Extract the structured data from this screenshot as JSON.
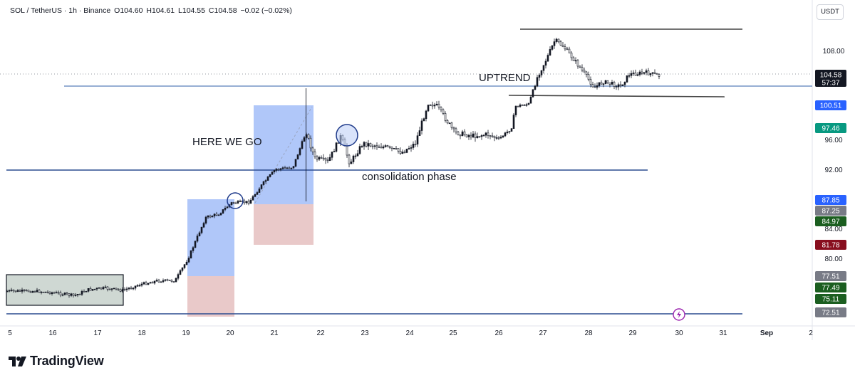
{
  "header": {
    "symbol": "SOL / TetherUS · 1h · Binance",
    "open": "O104.60",
    "high": "H104.61",
    "low": "L104.55",
    "close": "C104.58",
    "change": "−0.02 (−0.02%)"
  },
  "currency_button": "USDT",
  "brand": "TradingView",
  "chart_data": {
    "type": "candlestick",
    "x_ticks": [
      "5",
      "16",
      "17",
      "18",
      "19",
      "20",
      "21",
      "22",
      "23",
      "24",
      "25",
      "26",
      "27",
      "28",
      "29",
      "30",
      "31",
      "Sep",
      "2"
    ],
    "y_ticks": [
      "108.00",
      "96.00",
      "92.00",
      "84.00",
      "80.00"
    ],
    "price_tags": [
      {
        "label": "104.58",
        "sub": "57:37",
        "color": "#131722"
      },
      {
        "label": "100.51",
        "color": "#2962ff"
      },
      {
        "label": "97.46",
        "color": "#089981"
      },
      {
        "label": "87.85",
        "color": "#2962ff"
      },
      {
        "label": "87.25",
        "color": "#787b86"
      },
      {
        "label": "84.97",
        "color": "#1b5e20"
      },
      {
        "label": "81.78",
        "color": "#880e1e"
      },
      {
        "label": "77.51",
        "color": "#787b86"
      },
      {
        "label": "77.49",
        "color": "#1b5e20"
      },
      {
        "label": "75.11",
        "color": "#1b5e20"
      },
      {
        "label": "72.51",
        "color": "#787b86"
      }
    ],
    "annotations": [
      "HERE WE GO",
      "consolidation phase",
      "UPTREND"
    ],
    "path": [
      {
        "x": "15.6",
        "y": 75.6
      },
      {
        "x": "16.0",
        "y": 75.4
      },
      {
        "x": "16.5",
        "y": 75.0
      },
      {
        "x": "16.8",
        "y": 75.8
      },
      {
        "x": "17.2",
        "y": 76.0
      },
      {
        "x": "17.6",
        "y": 75.7
      },
      {
        "x": "18.0",
        "y": 76.5
      },
      {
        "x": "18.4",
        "y": 77.0
      },
      {
        "x": "18.8",
        "y": 77.0
      },
      {
        "x": "19.1",
        "y": 80.0
      },
      {
        "x": "19.5",
        "y": 85.5
      },
      {
        "x": "19.8",
        "y": 86.0
      },
      {
        "x": "20.1",
        "y": 87.5
      },
      {
        "x": "20.5",
        "y": 87.6
      },
      {
        "x": "20.8",
        "y": 90.0
      },
      {
        "x": "21.1",
        "y": 92.0
      },
      {
        "x": "21.5",
        "y": 92.3
      },
      {
        "x": "21.8",
        "y": 97.0
      },
      {
        "x": "22.0",
        "y": 93.5
      },
      {
        "x": "22.3",
        "y": 93.0
      },
      {
        "x": "22.6",
        "y": 96.5
      },
      {
        "x": "22.8",
        "y": 92.8
      },
      {
        "x": "23.1",
        "y": 95.5
      },
      {
        "x": "23.6",
        "y": 95.0
      },
      {
        "x": "24.0",
        "y": 94.3
      },
      {
        "x": "24.3",
        "y": 95.5
      },
      {
        "x": "24.6",
        "y": 101.0
      },
      {
        "x": "24.8",
        "y": 100.5
      },
      {
        "x": "25.2",
        "y": 97.0
      },
      {
        "x": "25.6",
        "y": 96.5
      },
      {
        "x": "26.0",
        "y": 96.7
      },
      {
        "x": "26.2",
        "y": 96.0
      },
      {
        "x": "26.5",
        "y": 97.5
      },
      {
        "x": "26.6",
        "y": 100.5
      },
      {
        "x": "26.9",
        "y": 100.8
      },
      {
        "x": "27.1",
        "y": 104.5
      },
      {
        "x": "27.3",
        "y": 106.8
      },
      {
        "x": "27.5",
        "y": 109.4
      },
      {
        "x": "27.7",
        "y": 108.5
      },
      {
        "x": "27.9",
        "y": 107.0
      },
      {
        "x": "28.1",
        "y": 105.5
      },
      {
        "x": "28.4",
        "y": 103.0
      },
      {
        "x": "28.6",
        "y": 103.8
      },
      {
        "x": "29.0",
        "y": 103.2
      },
      {
        "x": "29.2",
        "y": 104.8
      },
      {
        "x": "29.6",
        "y": 105.0
      },
      {
        "x": "29.9",
        "y": 104.6
      }
    ]
  }
}
